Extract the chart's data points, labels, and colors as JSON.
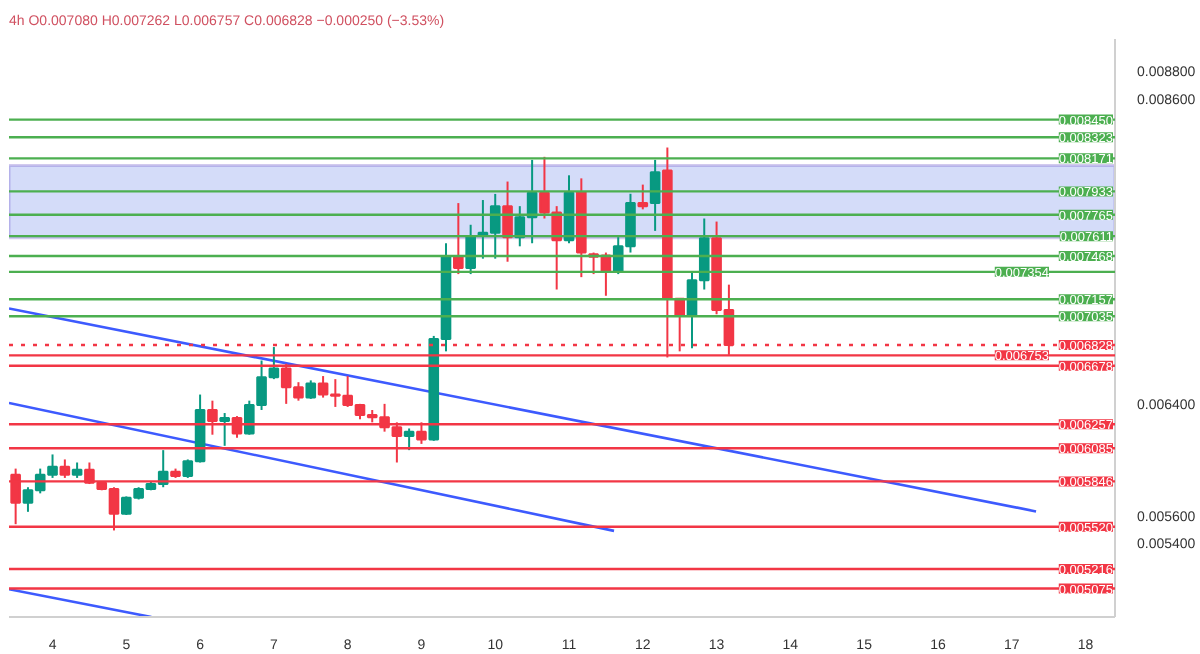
{
  "chart_data": {
    "type": "candlestick",
    "title": "4h  O0.007080  H0.007262  L0.006757  C0.006828  −0.000250 (−3.53%)",
    "x": [
      3.5,
      3.667,
      3.833,
      4,
      4.167,
      4.333,
      4.5,
      4.667,
      4.833,
      5,
      5.167,
      5.333,
      5.5,
      5.667,
      5.833,
      6,
      6.167,
      6.333,
      6.5,
      6.667,
      6.833,
      7,
      7.167,
      7.333,
      7.5,
      7.667,
      7.833,
      8,
      8.167,
      8.333,
      8.5,
      8.667,
      8.833,
      9,
      9.167,
      9.333,
      9.5,
      9.667,
      9.833,
      10,
      10.167,
      10.333,
      10.5,
      10.667,
      10.833,
      11,
      11.167,
      11.333,
      11.5,
      11.667,
      11.833,
      12,
      12.167,
      12.333,
      12.5,
      12.667,
      12.833,
      13,
      13.167
    ],
    "ohlc": [
      [
        0.005893,
        0.005938,
        0.005538,
        0.005693
      ],
      [
        0.005693,
        0.005804,
        0.005627,
        0.005782
      ],
      [
        0.005782,
        0.005938,
        0.00576,
        0.005893
      ],
      [
        0.005893,
        0.00604,
        0.005871,
        0.005951
      ],
      [
        0.005951,
        0.006004,
        0.005871,
        0.005893
      ],
      [
        0.005893,
        0.005982,
        0.005871,
        0.005929
      ],
      [
        0.005929,
        0.005982,
        0.005827,
        0.005836
      ],
      [
        0.005836,
        0.005849,
        0.005782,
        0.005791
      ],
      [
        0.005791,
        0.005804,
        0.005493,
        0.005613
      ],
      [
        0.005613,
        0.005738,
        0.005604,
        0.005729
      ],
      [
        0.005729,
        0.005804,
        0.005716,
        0.005791
      ],
      [
        0.005791,
        0.005849,
        0.005782,
        0.005827
      ],
      [
        0.005827,
        0.006071,
        0.005804,
        0.005916
      ],
      [
        0.005916,
        0.005938,
        0.005871,
        0.005884
      ],
      [
        0.005884,
        0.006004,
        0.005871,
        0.005991
      ],
      [
        0.005991,
        0.006471,
        0.005982,
        0.00636
      ],
      [
        0.00636,
        0.006427,
        0.006182,
        0.00628
      ],
      [
        0.00628,
        0.006338,
        0.006102,
        0.006302
      ],
      [
        0.006302,
        0.006316,
        0.00616,
        0.006191
      ],
      [
        0.006191,
        0.006427,
        0.006182,
        0.006396
      ],
      [
        0.006396,
        0.006716,
        0.00636,
        0.006596
      ],
      [
        0.006596,
        0.006813,
        0.006582,
        0.006658
      ],
      [
        0.006658,
        0.006693,
        0.006404,
        0.006524
      ],
      [
        0.006524,
        0.00656,
        0.006427,
        0.006449
      ],
      [
        0.006449,
        0.006573,
        0.00644,
        0.006551
      ],
      [
        0.006551,
        0.006604,
        0.006449,
        0.006471
      ],
      [
        0.006471,
        0.006582,
        0.006382,
        0.006462
      ],
      [
        0.006462,
        0.006604,
        0.006382,
        0.006396
      ],
      [
        0.006396,
        0.006404,
        0.006293,
        0.006324
      ],
      [
        0.006324,
        0.00636,
        0.006271,
        0.006307
      ],
      [
        0.006307,
        0.006404,
        0.006204,
        0.006236
      ],
      [
        0.006236,
        0.006271,
        0.005982,
        0.006173
      ],
      [
        0.006173,
        0.006227,
        0.006071,
        0.006204
      ],
      [
        0.006204,
        0.006271,
        0.006116,
        0.006147
      ],
      [
        0.006147,
        0.006893,
        0.006138,
        0.006871
      ],
      [
        0.006871,
        0.00756,
        0.006782,
        0.007462
      ],
      [
        0.007462,
        0.007849,
        0.007338,
        0.007382
      ],
      [
        0.007382,
        0.007693,
        0.007338,
        0.007613
      ],
      [
        0.007613,
        0.007871,
        0.007449,
        0.007636
      ],
      [
        0.007636,
        0.007915,
        0.007449,
        0.007827
      ],
      [
        0.007827,
        0.008004,
        0.007427,
        0.007604
      ],
      [
        0.007604,
        0.007827,
        0.007538,
        0.007747
      ],
      [
        0.007747,
        0.00816,
        0.00756,
        0.007924
      ],
      [
        0.007924,
        0.008182,
        0.007738,
        0.007782
      ],
      [
        0.007782,
        0.007827,
        0.007227,
        0.007582
      ],
      [
        0.007582,
        0.008049,
        0.00756,
        0.007924
      ],
      [
        0.007929,
        0.008027,
        0.007316,
        0.007493
      ],
      [
        0.00748,
        0.007493,
        0.007338,
        0.007462
      ],
      [
        0.007471,
        0.007493,
        0.007182,
        0.00736
      ],
      [
        0.00736,
        0.007604,
        0.007338,
        0.007538
      ],
      [
        0.007538,
        0.007916,
        0.007493,
        0.007849
      ],
      [
        0.007849,
        0.007982,
        0.007804,
        0.007827
      ],
      [
        0.007849,
        0.00816,
        0.007649,
        0.008071
      ],
      [
        0.008084,
        0.008249,
        0.006738,
        0.00716
      ],
      [
        0.00716,
        0.00716,
        0.006782,
        0.007036
      ],
      [
        0.007036,
        0.00736,
        0.006804,
        0.007293
      ],
      [
        0.007293,
        0.007738,
        0.007227,
        0.007596
      ],
      [
        0.007596,
        0.007716,
        0.007049,
        0.00708
      ],
      [
        0.00708,
        0.007262,
        0.006757,
        0.006828
      ]
    ],
    "colors": [
      "#f23645",
      "#089981",
      "#089981",
      "#089981",
      "#f23645",
      "#089981",
      "#f23645",
      "#f23645",
      "#f23645",
      "#089981",
      "#089981",
      "#089981",
      "#089981",
      "#f23645",
      "#089981",
      "#089981",
      "#f23645",
      "#089981",
      "#f23645",
      "#089981",
      "#089981",
      "#089981",
      "#f23645",
      "#f23645",
      "#089981",
      "#f23645",
      "#f23645",
      "#f23645",
      "#f23645",
      "#f23645",
      "#f23645",
      "#f23645",
      "#089981",
      "#f23645",
      "#089981",
      "#089981",
      "#f23645",
      "#089981",
      "#089981",
      "#089981",
      "#f23645",
      "#089981",
      "#089981",
      "#f23645",
      "#f23645",
      "#089981",
      "#f23645",
      "#f23645",
      "#f23645",
      "#089981",
      "#089981",
      "#f23645",
      "#089981",
      "#f23645",
      "#f23645",
      "#089981",
      "#089981",
      "#f23645",
      "#f23645"
    ],
    "series": [
      {
        "type": "line",
        "color": "#3d5afe",
        "x": [
          3.41,
          17.33
        ],
        "values": [
          0.00709,
          0.00563
        ]
      },
      {
        "type": "line",
        "color": "#3d5afe",
        "x": [
          3.41,
          11.61
        ],
        "values": [
          0.00641,
          0.00549
        ]
      },
      {
        "type": "line",
        "color": "#3d5afe",
        "x": [
          3.41,
          5.34
        ],
        "values": [
          0.00507,
          0.00487
        ]
      }
    ],
    "bands": [
      {
        "axis": "y",
        "from": 0.0076,
        "to": 0.00812,
        "color": "#c9d3f8"
      }
    ],
    "ref_lines": [
      {
        "axis": "y",
        "value": 0.00845,
        "label": "0.008450",
        "color": "#4caf50"
      },
      {
        "axis": "y",
        "value": 0.008323,
        "label": "0.008323",
        "color": "#4caf50"
      },
      {
        "axis": "y",
        "value": 0.008171,
        "label": "0.008171",
        "color": "#4caf50"
      },
      {
        "axis": "y",
        "value": 0.007933,
        "label": "0.007933",
        "color": "#4caf50"
      },
      {
        "axis": "y",
        "value": 0.007765,
        "label": "0.007765",
        "color": "#4caf50"
      },
      {
        "axis": "y",
        "value": 0.007611,
        "label": "0.007611",
        "color": "#4caf50"
      },
      {
        "axis": "y",
        "value": 0.007468,
        "label": "0.007468",
        "color": "#4caf50"
      },
      {
        "axis": "y",
        "value": 0.007354,
        "label": "0.007354",
        "color": "#4caf50"
      },
      {
        "axis": "y",
        "value": 0.007157,
        "label": "0.007157",
        "color": "#4caf50"
      },
      {
        "axis": "y",
        "value": 0.007035,
        "label": "0.007035",
        "color": "#4caf50"
      },
      {
        "axis": "y",
        "value": 0.006828,
        "label": "0.006828",
        "color": "#f23645",
        "line_style": "dotted"
      },
      {
        "axis": "y",
        "value": 0.006753,
        "label": "0.006753",
        "color": "#f23645"
      },
      {
        "axis": "y",
        "value": 0.006678,
        "label": "0.006678",
        "color": "#f23645"
      },
      {
        "axis": "y",
        "value": 0.006257,
        "label": "0.006257",
        "color": "#f23645"
      },
      {
        "axis": "y",
        "value": 0.006085,
        "label": "0.006085",
        "color": "#f23645"
      },
      {
        "axis": "y",
        "value": 0.005846,
        "label": "0.005846",
        "color": "#f23645"
      },
      {
        "axis": "y",
        "value": 0.00552,
        "label": "0.005520",
        "color": "#f23645"
      },
      {
        "axis": "y",
        "value": 0.005216,
        "label": "0.005216",
        "color": "#f23645"
      },
      {
        "axis": "y",
        "value": 0.005075,
        "label": "0.005075",
        "color": "#f23645"
      }
    ],
    "xlim": [
      3.41,
      18.4
    ],
    "xticks": [
      4,
      5,
      6,
      7,
      8,
      9,
      10,
      11,
      12,
      13,
      14,
      15,
      16,
      17,
      18
    ],
    "ylim": [
      0.00487,
      0.00903
    ],
    "yticks": [
      {
        "value": 0.0088,
        "label": "0.008800"
      },
      {
        "value": 0.0086,
        "label": "0.008600"
      },
      {
        "value": 0.0064,
        "label": "0.006400"
      },
      {
        "value": 0.0056,
        "label": "0.005600"
      },
      {
        "value": 0.0054,
        "label": "0.005400"
      }
    ],
    "grid": false
  }
}
